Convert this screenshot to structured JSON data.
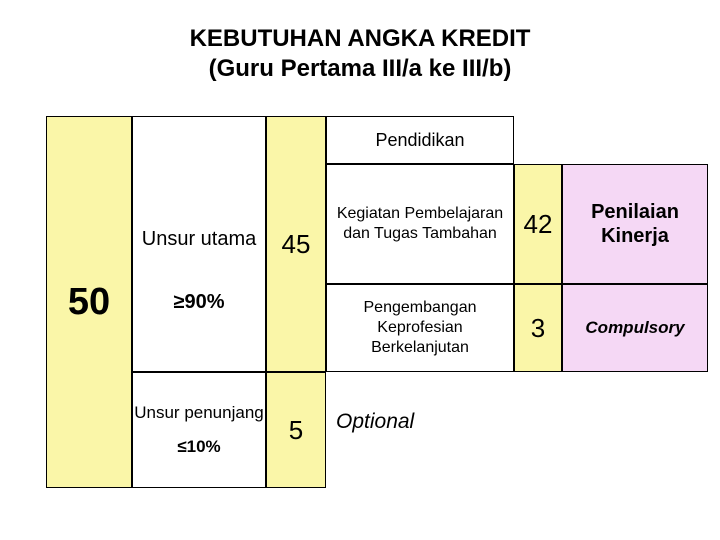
{
  "title_line1": "KEBUTUHAN ANGKA KREDIT",
  "title_line2": "(Guru Pertama III/a ke III/b)",
  "colors": {
    "yellow": "#faf6a8",
    "pink": "#f5d8f5",
    "white": "#ffffff",
    "border": "#000000"
  },
  "cells": {
    "fifty": "50",
    "unsur_utama": "Unsur utama",
    "pct90": "≥90%",
    "unsur_penunjang": "Unsur penunjang",
    "pct10": "≤10%",
    "fortyfive": "45",
    "five": "5",
    "pendidikan": "Pendidikan",
    "kegiatan": "Kegiatan Pembelajaran dan Tugas Tambahan",
    "pengembangan": "Pengembangan Keprofesian Berkelanjutan",
    "optional": "Optional",
    "fortytwo": "42",
    "three": "3",
    "penilaian": "Penilaian Kinerja",
    "compulsory": "Compulsory"
  },
  "structure": {
    "type": "infographic-table",
    "columns": 6,
    "font_family": "Arial",
    "title_fontsize": 24,
    "number_fontsize": 26,
    "big_number_fontsize": 38,
    "body_fontsize_range": [
      16,
      20
    ]
  }
}
